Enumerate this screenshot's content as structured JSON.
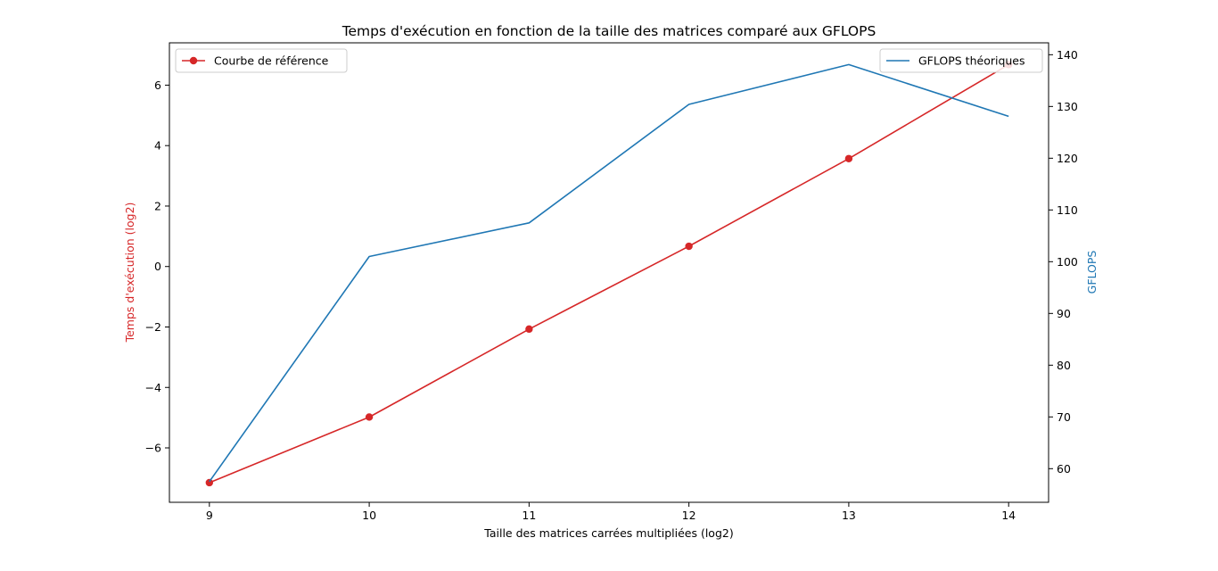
{
  "chart_data": {
    "type": "line",
    "title": "Temps d'exécution en fonction de la taille des matrices comparé aux GFLOPS",
    "xlabel": "Taille des matrices carrées multipliées (log2)",
    "x": [
      9,
      10,
      11,
      12,
      13,
      14
    ],
    "x_ticks": [
      "9",
      "10",
      "11",
      "12",
      "13",
      "14"
    ],
    "xlim": [
      8.75,
      14.25
    ],
    "left_axis": {
      "label": "Temps d'exécution (log2)",
      "color": "#d62728",
      "ylim": [
        -7.8,
        7.4
      ],
      "ticks": [
        -6,
        -4,
        -2,
        0,
        2,
        4,
        6
      ],
      "tick_labels": [
        "−6",
        "−4",
        "−2",
        "0",
        "2",
        "4",
        "6"
      ]
    },
    "right_axis": {
      "label": "GFLOPS",
      "color": "#1f77b4",
      "ylim": [
        53.5,
        142.3
      ],
      "ticks": [
        60,
        70,
        80,
        90,
        100,
        110,
        120,
        130,
        140
      ],
      "tick_labels": [
        "60",
        "70",
        "80",
        "90",
        "100",
        "110",
        "120",
        "130",
        "140"
      ]
    },
    "series": [
      {
        "name": "Courbe de référence",
        "axis": "left",
        "color": "#d62728",
        "marker": "circle",
        "values": [
          -7.15,
          -4.98,
          -2.07,
          0.67,
          3.57,
          6.68
        ]
      },
      {
        "name": "GFLOPS théoriques",
        "axis": "right",
        "color": "#1f77b4",
        "marker": "none",
        "values": [
          57.5,
          101.0,
          107.5,
          130.4,
          138.1,
          128.1
        ]
      }
    ],
    "legends": [
      {
        "placement": "top-left",
        "series": "Courbe de référence"
      },
      {
        "placement": "top-right",
        "series": "GFLOPS théoriques"
      }
    ],
    "grid": false
  }
}
